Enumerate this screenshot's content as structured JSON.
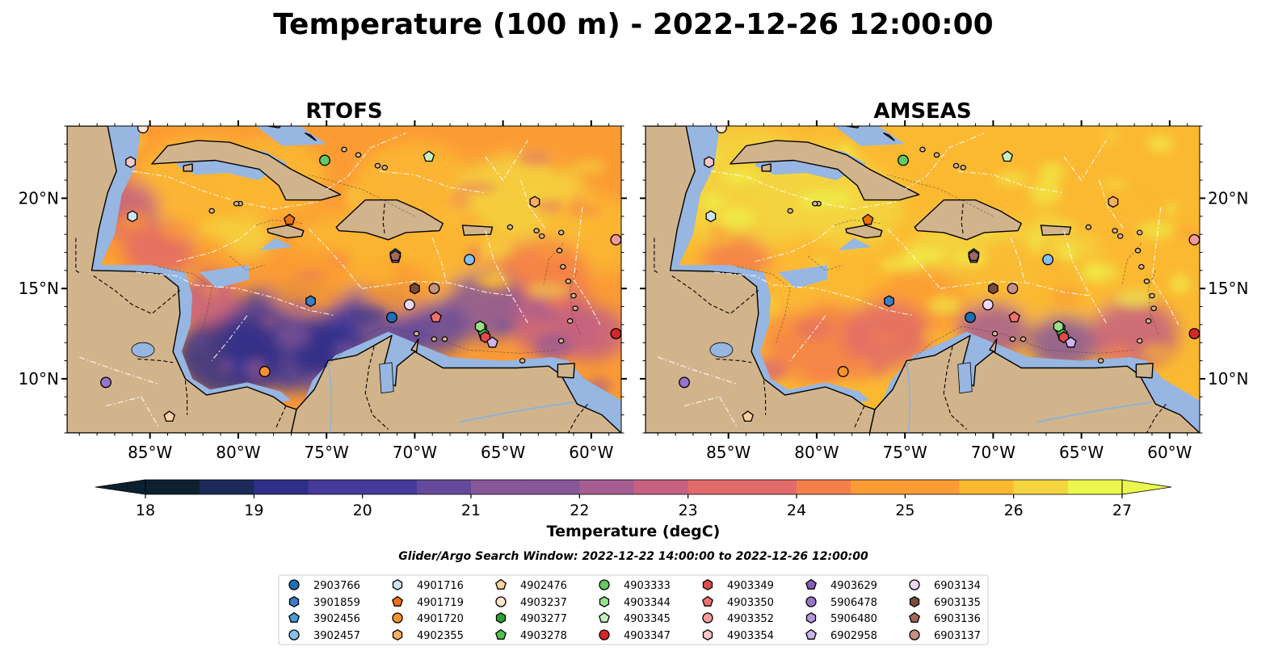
{
  "figure": {
    "title": "Temperature (100 m) - 2022-12-26 12:00:00"
  },
  "colors": {
    "land": "#d2b48c",
    "shelf": "#97b6e1",
    "deep": "#0d2030",
    "border": "#000000"
  },
  "chart_data": {
    "type": "heatmap",
    "panels": [
      {
        "title": "RTOFS",
        "model": "rtofs"
      },
      {
        "title": "AMSEAS",
        "model": "amseas"
      }
    ],
    "xlim": [
      -89.7,
      -58.3
    ],
    "ylim": [
      7.0,
      24.0
    ],
    "x_ticks": [
      {
        "lon": -85,
        "label": "85°W"
      },
      {
        "lon": -80,
        "label": "80°W"
      },
      {
        "lon": -75,
        "label": "75°W"
      },
      {
        "lon": -70,
        "label": "70°W"
      },
      {
        "lon": -65,
        "label": "65°W"
      },
      {
        "lon": -60,
        "label": "60°W"
      }
    ],
    "y_ticks": [
      {
        "lat": 20,
        "label": "20°N"
      },
      {
        "lat": 15,
        "label": "15°N"
      },
      {
        "lat": 10,
        "label": "10°N"
      }
    ],
    "colorbar": {
      "label": "Temperature (degC)",
      "min": 18,
      "max": 27,
      "step": 0.5,
      "extend": "both",
      "ticks": [
        "18",
        "19",
        "20",
        "21",
        "22",
        "23",
        "24",
        "25",
        "26",
        "27"
      ],
      "stops": [
        "#0d2030",
        "#1c2a5a",
        "#2e2f88",
        "#463a9a",
        "#654a9c",
        "#87579a",
        "#a65d92",
        "#c66181",
        "#e26a6a",
        "#f57f4a",
        "#fb9b34",
        "#fbb932",
        "#f4d53f",
        "#ecf74d"
      ]
    },
    "subtitle": "Glider/Argo Search Window: 2022-12-22 14:00:00 to 2022-12-26 12:00:00",
    "series": [
      {
        "name": "2903766",
        "marker": "circle",
        "color": "#1f6fb4",
        "lon": -71.3,
        "lat": 13.4
      },
      {
        "name": "3901859",
        "marker": "hexagon",
        "color": "#3a7fc6",
        "lon": -75.9,
        "lat": 14.3
      },
      {
        "name": "3902456",
        "marker": "pentagon",
        "color": "#4a9ad6",
        "lon": -71.1,
        "lat": 16.9
      },
      {
        "name": "3902457",
        "marker": "circle",
        "color": "#86c0ee",
        "lon": -66.9,
        "lat": 16.6
      },
      {
        "name": "4901716",
        "marker": "hexagon",
        "color": "#cce4f6",
        "lon": -86.0,
        "lat": 19.0
      },
      {
        "name": "4901719",
        "marker": "pentagon",
        "color": "#ec7014",
        "lon": -77.1,
        "lat": 18.8
      },
      {
        "name": "4901720",
        "marker": "circle",
        "color": "#f7922e",
        "lon": -78.5,
        "lat": 10.4
      },
      {
        "name": "4902355",
        "marker": "hexagon",
        "color": "#fdae61",
        "lon": -63.2,
        "lat": 19.8
      },
      {
        "name": "4902476",
        "marker": "pentagon",
        "color": "#fdd0a2",
        "lon": -83.9,
        "lat": 7.9
      },
      {
        "name": "4903237",
        "marker": "circle",
        "color": "#fee6ce",
        "lon": -85.4,
        "lat": 23.9
      },
      {
        "name": "4903277",
        "marker": "hexagon",
        "color": "#2ca02c",
        "lon": -66.2,
        "lat": 12.8
      },
      {
        "name": "4903278",
        "marker": "pentagon",
        "color": "#4cc34c",
        "lon": -66.1,
        "lat": 12.5
      },
      {
        "name": "4903333",
        "marker": "circle",
        "color": "#63c963",
        "lon": -75.1,
        "lat": 22.1
      },
      {
        "name": "4903344",
        "marker": "hexagon",
        "color": "#98df8a",
        "lon": -66.3,
        "lat": 12.9
      },
      {
        "name": "4903345",
        "marker": "pentagon",
        "color": "#c7f0c0",
        "lon": -69.2,
        "lat": 22.3
      },
      {
        "name": "4903347",
        "marker": "circle",
        "color": "#d62728",
        "lon": -58.6,
        "lat": 12.5
      },
      {
        "name": "4903349",
        "marker": "hexagon",
        "color": "#e34a4a",
        "lon": -66.0,
        "lat": 12.3
      },
      {
        "name": "4903350",
        "marker": "pentagon",
        "color": "#f07070",
        "lon": -68.8,
        "lat": 13.4
      },
      {
        "name": "4903352",
        "marker": "circle",
        "color": "#f49a9a",
        "lon": -58.6,
        "lat": 17.7
      },
      {
        "name": "4903354",
        "marker": "hexagon",
        "color": "#fbc6c6",
        "lon": -86.1,
        "lat": 22.0
      },
      {
        "name": "4903629",
        "marker": "pentagon",
        "color": "#8c5ab8",
        "lon": -71.1,
        "lat": 16.7
      },
      {
        "name": "5906478",
        "marker": "circle",
        "color": "#9a73cc",
        "lon": -87.5,
        "lat": 9.8
      },
      {
        "name": "5906480",
        "marker": "hexagon",
        "color": "#b596de",
        "lon": -58.0,
        "lat": 16.0
      },
      {
        "name": "6902958",
        "marker": "pentagon",
        "color": "#cdb4ee",
        "lon": -65.6,
        "lat": 12.0
      },
      {
        "name": "6903134",
        "marker": "circle",
        "color": "#f0d6f6",
        "lon": -70.3,
        "lat": 14.1
      },
      {
        "name": "6903135",
        "marker": "hexagon",
        "color": "#7b4b3a",
        "lon": -70.0,
        "lat": 15.0
      },
      {
        "name": "6903136",
        "marker": "pentagon",
        "color": "#a0695a",
        "lon": -71.1,
        "lat": 16.8
      },
      {
        "name": "6903137",
        "marker": "circle",
        "color": "#c49080",
        "lon": -68.9,
        "lat": 15.0
      }
    ]
  }
}
